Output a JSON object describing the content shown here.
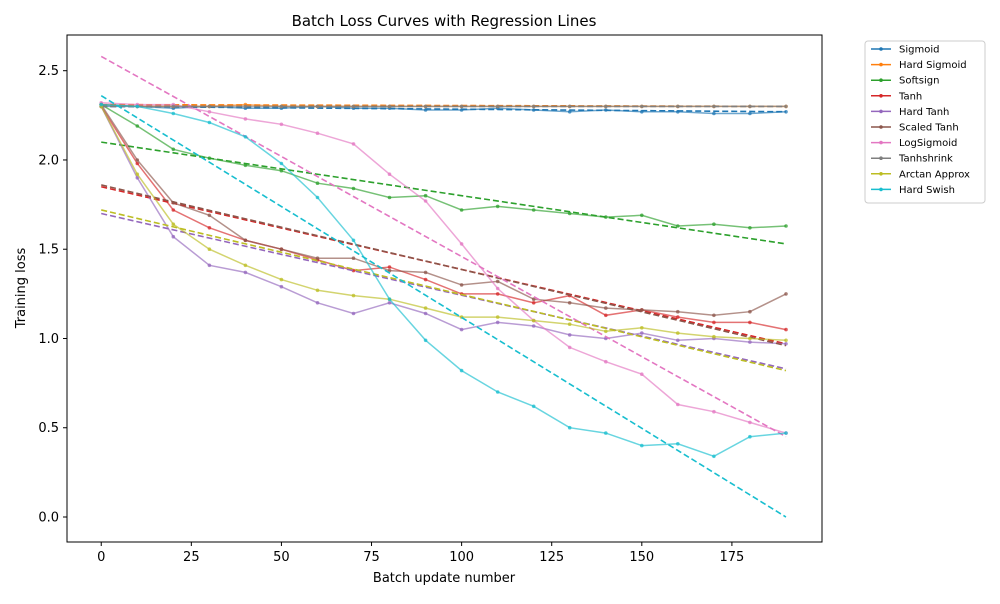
{
  "chart_data": {
    "type": "line",
    "title": "Batch Loss Curves with Regression Lines",
    "xlabel": "Batch update number",
    "ylabel": "Training loss",
    "xlim": [
      -9.5,
      200
    ],
    "ylim": [
      -0.14,
      2.7
    ],
    "xticks": [
      0,
      25,
      50,
      75,
      100,
      125,
      150,
      175
    ],
    "yticks": [
      0.0,
      0.5,
      1.0,
      1.5,
      2.0,
      2.5
    ],
    "xtick_labels": [
      "0",
      "25",
      "50",
      "75",
      "100",
      "125",
      "150",
      "175"
    ],
    "ytick_labels": [
      "0.0",
      "0.5",
      "1.0",
      "1.5",
      "2.0",
      "2.5"
    ],
    "grid": false,
    "legend_position": "outside-top-right",
    "x": [
      0,
      10,
      20,
      30,
      40,
      50,
      60,
      70,
      80,
      90,
      100,
      110,
      120,
      130,
      140,
      150,
      160,
      170,
      180,
      190
    ],
    "series": [
      {
        "name": "Sigmoid",
        "color": "#1f77b4",
        "values": [
          2.3,
          2.3,
          2.29,
          2.3,
          2.29,
          2.29,
          2.3,
          2.29,
          2.29,
          2.28,
          2.28,
          2.29,
          2.28,
          2.27,
          2.28,
          2.27,
          2.27,
          2.26,
          2.26,
          2.27
        ],
        "regression": [
          2.3,
          2.27
        ]
      },
      {
        "name": "Hard Sigmoid",
        "color": "#ff7f0e",
        "values": [
          2.31,
          2.3,
          2.3,
          2.3,
          2.31,
          2.3,
          2.3,
          2.3,
          2.3,
          2.3,
          2.3,
          2.3,
          2.3,
          2.3,
          2.3,
          2.3,
          2.3,
          2.3,
          2.3,
          2.3
        ],
        "regression": [
          2.31,
          2.3
        ]
      },
      {
        "name": "Softsign",
        "color": "#2ca02c",
        "values": [
          2.31,
          2.19,
          2.06,
          2.01,
          1.97,
          1.94,
          1.87,
          1.84,
          1.79,
          1.8,
          1.72,
          1.74,
          1.72,
          1.7,
          1.68,
          1.69,
          1.63,
          1.64,
          1.62,
          1.63
        ],
        "regression": [
          2.1,
          1.53
        ]
      },
      {
        "name": "Tanh",
        "color": "#d62728",
        "values": [
          2.3,
          1.98,
          1.72,
          1.62,
          1.55,
          1.5,
          1.44,
          1.38,
          1.4,
          1.33,
          1.25,
          1.25,
          1.2,
          1.24,
          1.13,
          1.16,
          1.12,
          1.09,
          1.09,
          1.05
        ],
        "regression": [
          1.85,
          0.97
        ]
      },
      {
        "name": "Hard Tanh",
        "color": "#9467bd",
        "values": [
          2.3,
          1.9,
          1.57,
          1.41,
          1.37,
          1.29,
          1.2,
          1.14,
          1.2,
          1.14,
          1.05,
          1.09,
          1.07,
          1.02,
          1.0,
          1.03,
          0.99,
          1.0,
          0.98,
          0.97
        ],
        "regression": [
          1.7,
          0.83
        ]
      },
      {
        "name": "Scaled Tanh",
        "color": "#8c564b",
        "values": [
          2.31,
          2.0,
          1.76,
          1.69,
          1.55,
          1.5,
          1.45,
          1.45,
          1.38,
          1.37,
          1.3,
          1.32,
          1.22,
          1.2,
          1.17,
          1.16,
          1.15,
          1.13,
          1.15,
          1.25
        ],
        "regression": [
          1.86,
          0.96
        ]
      },
      {
        "name": "LogSigmoid",
        "color": "#e377c2",
        "values": [
          2.32,
          2.31,
          2.31,
          2.27,
          2.23,
          2.2,
          2.15,
          2.09,
          1.92,
          1.77,
          1.53,
          1.28,
          1.1,
          0.95,
          0.87,
          0.8,
          0.63,
          0.59,
          0.53,
          0.47
        ],
        "regression": [
          2.58,
          0.45
        ]
      },
      {
        "name": "Tanhshrink",
        "color": "#7f7f7f",
        "values": [
          2.31,
          2.3,
          2.3,
          2.3,
          2.3,
          2.3,
          2.3,
          2.3,
          2.3,
          2.3,
          2.3,
          2.3,
          2.3,
          2.3,
          2.3,
          2.3,
          2.3,
          2.3,
          2.3,
          2.3
        ],
        "regression": [
          2.3,
          2.3
        ]
      },
      {
        "name": "Arctan Approx",
        "color": "#bcbd22",
        "values": [
          2.3,
          1.92,
          1.64,
          1.5,
          1.41,
          1.33,
          1.27,
          1.24,
          1.22,
          1.17,
          1.12,
          1.12,
          1.1,
          1.08,
          1.04,
          1.06,
          1.03,
          1.01,
          1.0,
          0.99
        ],
        "regression": [
          1.72,
          0.82
        ]
      },
      {
        "name": "Hard Swish",
        "color": "#17becf",
        "values": [
          2.31,
          2.3,
          2.26,
          2.21,
          2.13,
          1.98,
          1.79,
          1.55,
          1.22,
          0.99,
          0.82,
          0.7,
          0.62,
          0.5,
          0.47,
          0.4,
          0.41,
          0.34,
          0.45,
          0.47
        ],
        "regression": [
          2.36,
          0.0
        ]
      }
    ]
  }
}
